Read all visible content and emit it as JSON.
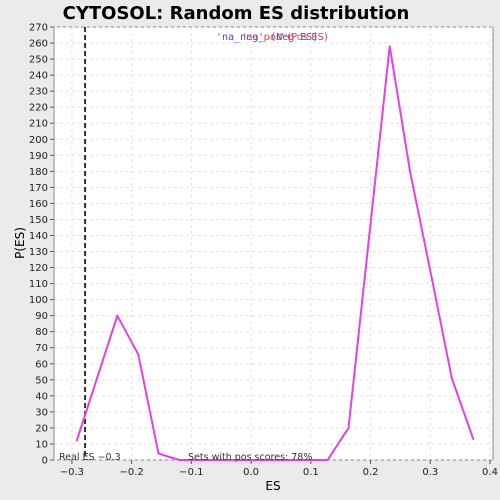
{
  "chart_data": {
    "type": "line",
    "title": "CYTOSOL: Random ES distribution",
    "xlabel": "ES",
    "ylabel": "P(ES)",
    "xlim": [
      -0.33,
      0.405
    ],
    "ylim": [
      0,
      270
    ],
    "x_ticks": [
      -0.3,
      -0.2,
      -0.1,
      0.0,
      0.1,
      0.2,
      0.3,
      0.4
    ],
    "x_tick_labels": [
      "−0.3",
      "−0.2",
      "−0.1",
      "0.0",
      "0.1",
      "0.2",
      "0.3",
      "0.4"
    ],
    "y_ticks": [
      0,
      10,
      20,
      30,
      40,
      50,
      60,
      70,
      80,
      90,
      100,
      110,
      120,
      130,
      140,
      150,
      160,
      170,
      180,
      190,
      200,
      210,
      220,
      230,
      240,
      250,
      260,
      270
    ],
    "grid": true,
    "legend_position": "top-center",
    "legend": [
      {
        "text": "'na_neg' (Neg ES)",
        "color": "#4a4ad8"
      },
      {
        "text": "'na_pos' (Pos ES)",
        "color": "#e8404a"
      }
    ],
    "series": [
      {
        "color": "#e640e6",
        "x": [
          -0.292,
          -0.224,
          -0.189,
          -0.155,
          -0.12,
          0.094,
          0.128,
          0.163,
          0.232,
          0.266,
          0.3,
          0.336,
          0.372
        ],
        "values": [
          12,
          90,
          66,
          4,
          0,
          0,
          0,
          20,
          258,
          180,
          118,
          51,
          13
        ]
      }
    ],
    "real_es": {
      "value": -0.278,
      "label": "Real ES −0.3",
      "line_color": "#333333"
    },
    "annotation": "Sets with pos scores: 78%"
  }
}
